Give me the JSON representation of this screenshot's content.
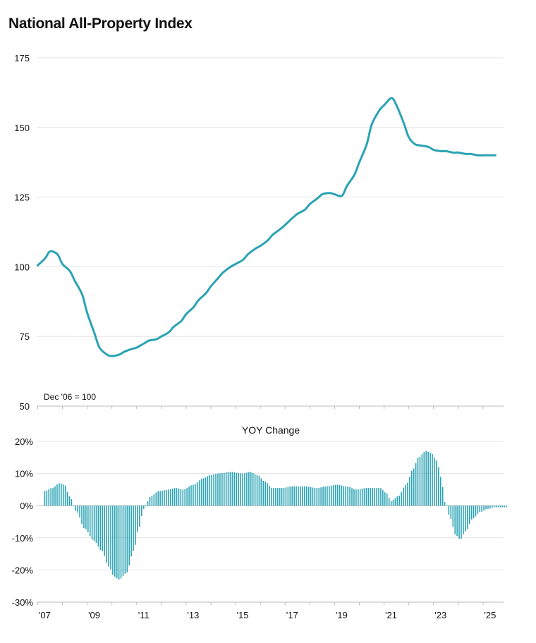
{
  "title": "National All-Property Index",
  "colors": {
    "series": "#2aa3b4",
    "grid": "#e3e3e3",
    "axis": "#bbbbbb",
    "bar": "#2aa3b4"
  },
  "chart_data": [
    {
      "type": "line",
      "title": "National All-Property Index",
      "note": "Dec '06 = 100",
      "ylim": [
        50,
        175
      ],
      "yticks": [
        50,
        75,
        100,
        125,
        150,
        175
      ],
      "grid": true,
      "series": [
        {
          "x": [
            2007.0,
            2007.3,
            2007.5,
            2007.8,
            2008.0,
            2008.3,
            2008.5,
            2008.8,
            2009.0,
            2009.3,
            2009.5,
            2009.8,
            2010.0,
            2010.3,
            2010.5,
            2010.8,
            2011.0,
            2011.3,
            2011.5,
            2011.8,
            2012.0,
            2012.3,
            2012.5,
            2012.8,
            2013.0,
            2013.3,
            2013.5,
            2013.8,
            2014.0,
            2014.3,
            2014.5,
            2014.8,
            2015.0,
            2015.3,
            2015.5,
            2015.8,
            2016.0,
            2016.3,
            2016.5,
            2016.8,
            2017.0,
            2017.3,
            2017.5,
            2017.8,
            2018.0,
            2018.3,
            2018.5,
            2018.8,
            2019.0,
            2019.3,
            2019.5,
            2019.8,
            2020.0,
            2020.3,
            2020.5,
            2020.8,
            2021.0,
            2021.3,
            2021.5,
            2021.8,
            2022.0,
            2022.25,
            2022.5,
            2022.8,
            2023.0,
            2023.3,
            2023.5,
            2023.8,
            2024.0,
            2024.3,
            2024.5,
            2024.8,
            2025.0,
            2025.3,
            2025.5
          ],
          "y": [
            100.5,
            103.0,
            105.5,
            104.5,
            101.0,
            98.5,
            95.0,
            90.0,
            83.5,
            76.0,
            71.0,
            68.5,
            68.0,
            68.5,
            69.5,
            70.5,
            71.0,
            72.5,
            73.5,
            74.0,
            75.0,
            76.5,
            78.5,
            80.5,
            83.0,
            85.5,
            88.0,
            90.5,
            93.0,
            96.0,
            98.0,
            100.0,
            101.0,
            102.5,
            104.5,
            106.5,
            107.5,
            109.5,
            111.5,
            113.5,
            115.0,
            117.5,
            119.0,
            120.5,
            122.5,
            124.5,
            126.0,
            126.5,
            126.0,
            125.5,
            129.0,
            133.0,
            137.5,
            144.0,
            151.0,
            156.0,
            158.0,
            160.5,
            158.0,
            151.5,
            146.5,
            144.0,
            143.5,
            143.0,
            142.0,
            141.5,
            141.5,
            141.0,
            141.0,
            140.5,
            140.5,
            140.0,
            140.0,
            140.0,
            140.0
          ]
        }
      ]
    },
    {
      "type": "bar",
      "title": "YOY Change",
      "ylim": [
        -30,
        20
      ],
      "yticks": [
        -30,
        -20,
        -10,
        0,
        10,
        20
      ],
      "ytick_labels": [
        "-30%",
        "-20%",
        "-10%",
        "0%",
        "10%",
        "20%"
      ],
      "xtick_labels": [
        "'07",
        "'09",
        "'11",
        "'13",
        "'15",
        "'17",
        "'19",
        "'21",
        "'23",
        "'25"
      ],
      "xticks": [
        2007,
        2009,
        2011,
        2013,
        2015,
        2017,
        2019,
        2021,
        2023,
        2025
      ],
      "xlim": [
        2006.96,
        2025.83
      ],
      "grid": true,
      "keypoints_x": [
        2007.0,
        2007.3,
        2007.6,
        2007.8,
        2008.0,
        2008.3,
        2008.6,
        2009.0,
        2009.3,
        2009.6,
        2009.8,
        2010.0,
        2010.3,
        2010.6,
        2010.8,
        2011.0,
        2011.3,
        2011.6,
        2012.0,
        2012.3,
        2012.6,
        2013.0,
        2013.4,
        2013.7,
        2014.0,
        2014.5,
        2015.0,
        2015.3,
        2015.6,
        2015.9,
        2016.2,
        2016.6,
        2017.0,
        2017.5,
        2018.0,
        2018.4,
        2018.8,
        2019.2,
        2019.6,
        2020.0,
        2020.3,
        2020.55,
        2020.8,
        2021.0,
        2021.3,
        2021.6,
        2021.9,
        2022.1,
        2022.4,
        2022.6,
        2022.85,
        2023.0,
        2023.2,
        2023.4,
        2023.6,
        2023.8,
        2024.0,
        2024.3,
        2024.6,
        2024.9,
        2025.2,
        2025.5,
        2025.7
      ],
      "keypoints_y": [
        4.5,
        5.5,
        7.0,
        6.5,
        3.0,
        -2.0,
        -7.0,
        -11.0,
        -14.0,
        -19.0,
        -22.0,
        -23.0,
        -21.0,
        -14.0,
        -7.0,
        -1.0,
        3.0,
        4.5,
        5.0,
        5.5,
        5.0,
        6.5,
        8.5,
        9.5,
        10.0,
        10.5,
        10.0,
        10.5,
        9.5,
        7.5,
        5.5,
        5.5,
        6.0,
        6.0,
        5.5,
        6.0,
        6.5,
        6.0,
        5.0,
        5.5,
        5.5,
        5.5,
        4.0,
        1.5,
        3.0,
        6.5,
        11.5,
        15.0,
        17.0,
        16.5,
        14.0,
        9.0,
        0.5,
        -4.0,
        -9.0,
        -10.5,
        -8.0,
        -4.0,
        -2.0,
        -1.0,
        -0.5,
        -0.5,
        -0.5
      ]
    }
  ]
}
